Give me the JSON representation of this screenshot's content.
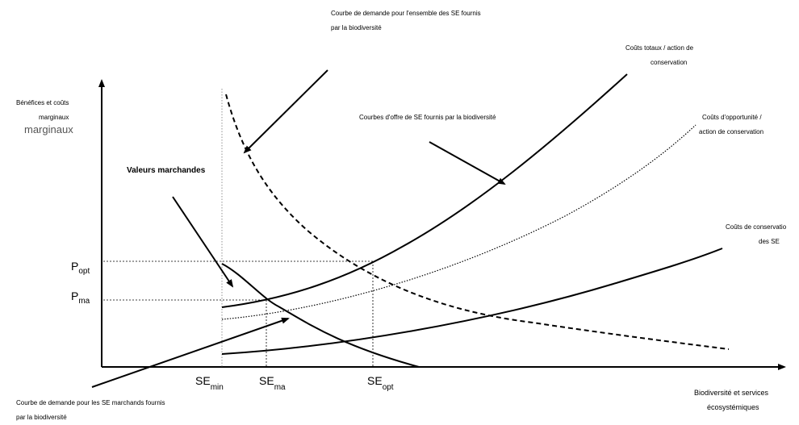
{
  "diagram": {
    "y_axis_label": [
      "Bénéfices et coûts",
      "marginaux"
    ],
    "y_axis_label_big": "marginaux",
    "x_axis_label": [
      "Biodiversité et services",
      "écosystémiques"
    ],
    "demand_all_label": [
      "Courbe de demande pour l'ensemble des SE fournis",
      "par la biodiversité"
    ],
    "demand_market_label": [
      "Courbe de demande pour les SE marchands fournis",
      "par la biodiversité"
    ],
    "market_values_label": "Valeurs marchandes",
    "supply_label": "Courbes d'offre de SE fournis par la biodiversité",
    "total_costs_label": [
      "Coûts totaux / action de",
      "conservation"
    ],
    "opportunity_costs_label": [
      "Coûts d'opportunité /",
      "action de conservation"
    ],
    "conservation_costs_label": [
      "Coûts de conservatio",
      "des SE"
    ],
    "p_opt": {
      "main": "P",
      "sub": "opt"
    },
    "p_ma": {
      "main": "P",
      "sub": "ma"
    },
    "se_min": {
      "main": "SE",
      "sub": "min"
    },
    "se_ma": {
      "main": "SE",
      "sub": "ma"
    },
    "se_opt": {
      "main": "SE",
      "sub": "opt"
    }
  }
}
